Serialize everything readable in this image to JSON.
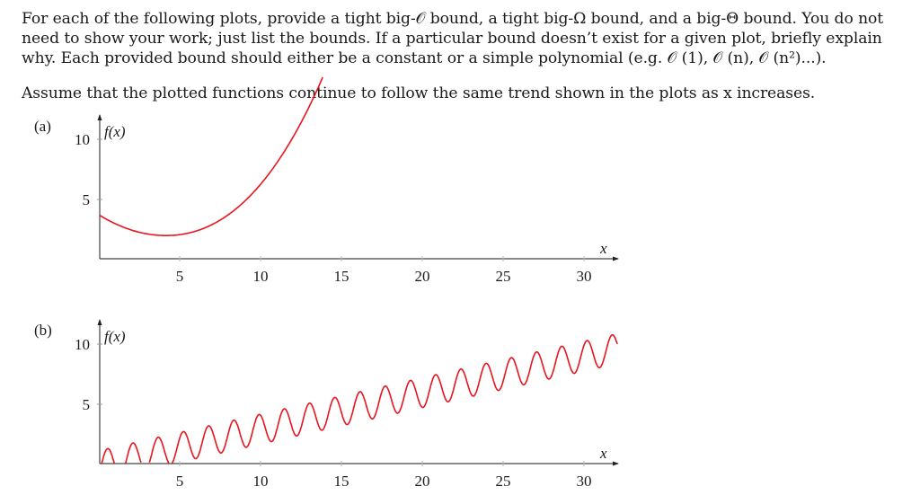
{
  "problem": {
    "instructions_line1": "For each of the following plots, provide a tight big-𝒪 bound, a tight big-Ω bound, and a big-Θ bound. You do not",
    "instructions_line2": "need to show your work; just list the bounds.  If a particular bound doesn’t exist for a given plot, briefly explain",
    "instructions_line3": "why. Each provided bound should either be a constant or a simple polynomial (e.g. 𝒪 (1), 𝒪 (n), 𝒪 (n²)...).",
    "assumption": "Assume that the plotted functions continue to follow the same trend shown in the plots as x increases."
  },
  "plots": {
    "a": {
      "label": "(a)",
      "ylabel": "f(x)",
      "xlabel": "x"
    },
    "b": {
      "label": "(b)",
      "ylabel": "f(x)",
      "xlabel": "x"
    }
  },
  "ticks": {
    "x": [
      "5",
      "10",
      "15",
      "20",
      "25",
      "30"
    ],
    "y": [
      "5",
      "10"
    ]
  },
  "chart_data": [
    {
      "type": "line",
      "title": "(a)",
      "xlabel": "x",
      "ylabel": "f(x)",
      "xlim": [
        0,
        32
      ],
      "ylim": [
        0,
        12
      ],
      "xticks": [
        5,
        10,
        15,
        20,
        25,
        30
      ],
      "yticks": [
        5,
        10
      ],
      "grid": false,
      "series": [
        {
          "name": "f(x)",
          "color": "#e8141e",
          "x": [
            0,
            2,
            4,
            6,
            8,
            10,
            12,
            13.8
          ],
          "values": [
            3.6,
            2.5,
            2.0,
            2.3,
            3.6,
            5.6,
            8.5,
            11.9
          ]
        }
      ],
      "description": "Quadratic-like curve: dips to a minimum near x≈4 (f≈2) then rises steeply, exiting the plot near x≈14."
    },
    {
      "type": "line",
      "title": "(b)",
      "xlabel": "x",
      "ylabel": "f(x)",
      "xlim": [
        0,
        32
      ],
      "ylim": [
        0,
        12
      ],
      "xticks": [
        5,
        10,
        15,
        20,
        25,
        30
      ],
      "yticks": [
        5,
        10
      ],
      "grid": false,
      "series": [
        {
          "name": "f(x)",
          "color": "#e8141e",
          "x": [
            0.5,
            2.0,
            3.6,
            5.1,
            6.7,
            8.3,
            9.8,
            11.4,
            13.0,
            14.5,
            16.1,
            17.6,
            19.2,
            20.8,
            22.3,
            23.9,
            25.5,
            27.0,
            28.6,
            30.1,
            31.7
          ],
          "values": [
            1.1,
            1.6,
            2.1,
            2.5,
            3.0,
            3.5,
            4.0,
            4.4,
            4.9,
            5.4,
            5.9,
            6.3,
            6.8,
            7.3,
            7.8,
            8.2,
            8.7,
            9.2,
            9.7,
            10.1,
            10.5
          ]
        }
      ],
      "description": "Oscillating sinusoid (period ≈1.55, amplitude ≈1.2) around a linearly increasing trend (slope ≈0.3); peaks listed as values."
    }
  ]
}
